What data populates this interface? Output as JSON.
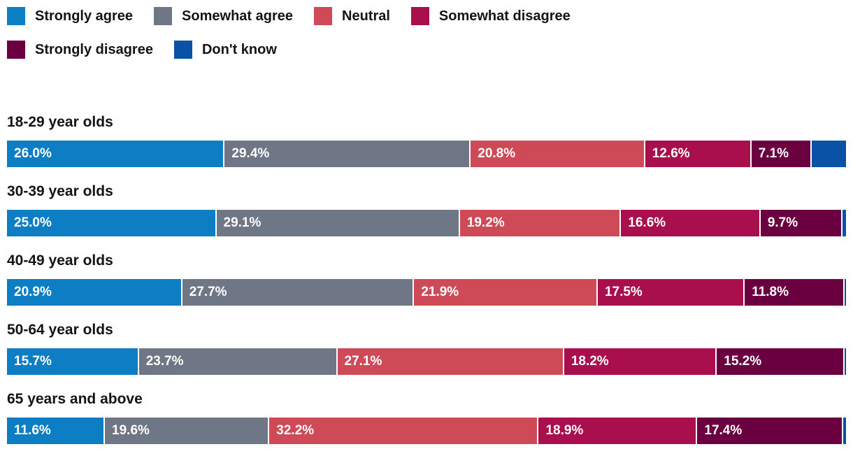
{
  "legend": {
    "rows": [
      [
        {
          "label": "Strongly agree",
          "color": "#0D7EC3"
        },
        {
          "label": "Somewhat agree",
          "color": "#6F7686"
        },
        {
          "label": "Neutral",
          "color": "#CE4A57"
        },
        {
          "label": "Somewhat disagree",
          "color": "#A90E4D"
        }
      ],
      [
        {
          "label": "Strongly disagree",
          "color": "#6A0040"
        },
        {
          "label": "Don't know",
          "color": "#0A52A6"
        }
      ]
    ]
  },
  "chart_data": {
    "type": "bar",
    "variant": "stacked-horizontal",
    "unit": "%",
    "xlim": [
      0,
      100
    ],
    "grid": false,
    "legend_position": "top",
    "categories": [
      "18-29 year olds",
      "30-39 year olds",
      "40-49 year olds",
      "50-64 year olds",
      "65 years and above"
    ],
    "series": [
      {
        "name": "Strongly agree",
        "color": "#0D7EC3",
        "values": [
          26.0,
          25.0,
          20.9,
          15.7,
          11.6
        ]
      },
      {
        "name": "Somewhat agree",
        "color": "#6F7686",
        "values": [
          29.4,
          29.1,
          27.7,
          23.7,
          19.6
        ]
      },
      {
        "name": "Neutral",
        "color": "#CE4A57",
        "values": [
          20.8,
          19.2,
          21.9,
          27.1,
          32.2
        ]
      },
      {
        "name": "Somewhat disagree",
        "color": "#A90E4D",
        "values": [
          12.6,
          16.6,
          17.5,
          18.2,
          18.9
        ]
      },
      {
        "name": "Strongly disagree",
        "color": "#6A0040",
        "values": [
          7.1,
          9.7,
          11.8,
          15.2,
          17.4
        ]
      },
      {
        "name": "Don't know",
        "color": "#0A52A6",
        "values": [
          4.1,
          0.4,
          0.2,
          0.1,
          0.3
        ]
      }
    ]
  }
}
